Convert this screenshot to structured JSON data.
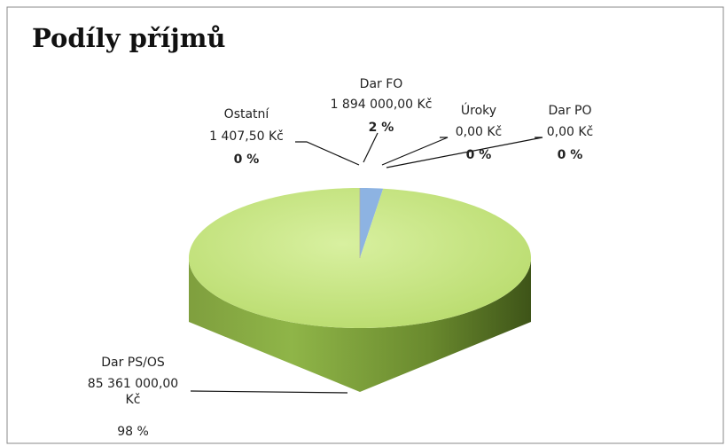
{
  "chart_data": {
    "type": "pie",
    "title": "Podíly příjmů",
    "categories": [
      "Dar FO",
      "Úroky",
      "Dar PO",
      "Dar PS/OS",
      "Ostatní"
    ],
    "values": [
      1894000,
      0,
      0,
      85361000,
      1407.5
    ],
    "value_labels": [
      "1 894 000,00 Kč",
      "0,00 Kč",
      "0,00 Kč",
      "85 361 000,00 Kč",
      "1 407,50 Kč"
    ],
    "percents": [
      2,
      0,
      0,
      98,
      0
    ],
    "percent_labels": [
      "2 %",
      "0 %",
      "0 %",
      "98 %",
      "0 %"
    ],
    "colors": [
      "#8db3e2",
      "#c0504d",
      "#8064a2",
      "#c3e37d",
      "#ffffff"
    ]
  }
}
